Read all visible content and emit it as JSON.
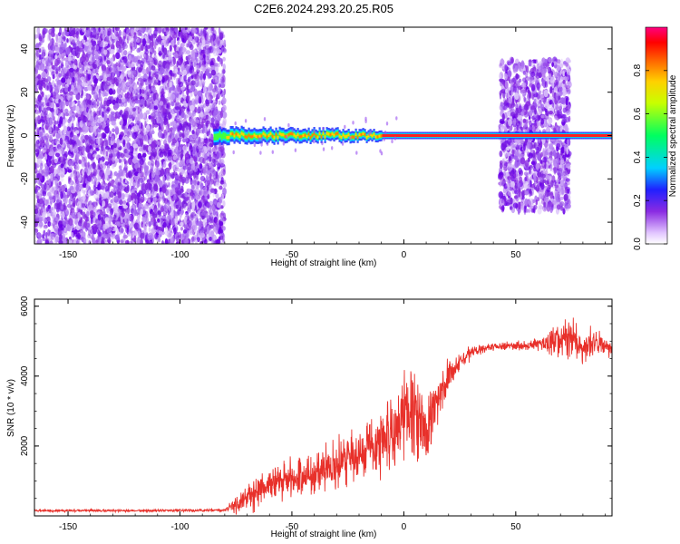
{
  "title": "C2E6.2024.293.20.25.R05",
  "chart_data": [
    {
      "type": "heatmap",
      "xlabel": "Height of straight line (km)",
      "ylabel": "Frequency (Hz)",
      "xlim": [
        -165,
        93
      ],
      "ylim": [
        -50,
        50
      ],
      "xticks": [
        -150,
        -100,
        -50,
        0,
        50
      ],
      "yticks": [
        40,
        20,
        0,
        -20,
        -40
      ],
      "colorbar_label": "Normalized spectral amplitude",
      "colorbar_range": [
        0,
        1
      ],
      "colorbar_ticks": [
        "0.0",
        "0.2",
        "0.4",
        "0.6",
        "0.8"
      ],
      "grid": false,
      "regions": [
        {
          "kind": "noise",
          "x": [
            -165,
            -80
          ],
          "freq": [
            -50,
            50
          ],
          "amplitude": 0.15
        },
        {
          "kind": "signal_band",
          "x": [
            -85,
            93
          ],
          "center_freq": 0,
          "amplitude": 0.9
        },
        {
          "kind": "noise",
          "x": [
            43,
            74
          ],
          "freq": [
            -35,
            35
          ],
          "amplitude": 0.15
        }
      ]
    },
    {
      "type": "line",
      "xlabel": "Height of straight line (km)",
      "ylabel": "SNR (10 * v/v)",
      "xlim": [
        -165,
        93
      ],
      "ylim": [
        0,
        6200
      ],
      "xticks": [
        -150,
        -100,
        -50,
        0,
        50
      ],
      "yticks": [
        2000,
        4000,
        6000
      ],
      "grid": false,
      "color": "#e8302a",
      "x": [
        -165,
        -120,
        -80,
        -75,
        -70,
        -60,
        -50,
        -40,
        -30,
        -20,
        -10,
        -5,
        0,
        5,
        10,
        15,
        20,
        25,
        30,
        40,
        50,
        60,
        70,
        75,
        80,
        85,
        93
      ],
      "y": [
        150,
        150,
        160,
        300,
        600,
        900,
        1050,
        1200,
        1450,
        1800,
        2200,
        2300,
        3000,
        2900,
        2300,
        3300,
        4000,
        4400,
        4700,
        4850,
        4850,
        4900,
        5000,
        5100,
        4800,
        5000,
        4700
      ],
      "noise_amplitude": [
        40,
        40,
        40,
        400,
        500,
        600,
        600,
        700,
        800,
        900,
        1200,
        1400,
        1500,
        1500,
        1400,
        800,
        500,
        250,
        200,
        150,
        150,
        200,
        500,
        700,
        500,
        400,
        300
      ]
    }
  ]
}
